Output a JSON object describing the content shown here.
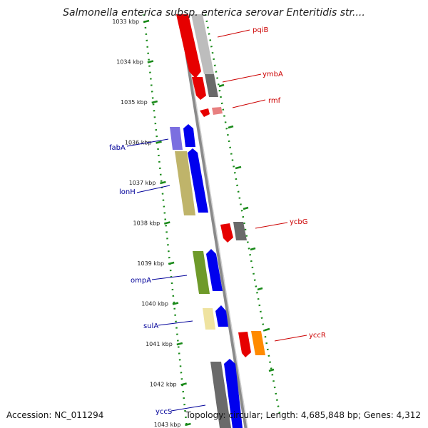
{
  "title": "Salmonella enterica subsp. enterica serovar Enteritidis str....",
  "footer": {
    "accession": "Accession: NC_011294",
    "topology": "Topology: circular; Length: 4,685,848 bp; Genes: 4,312"
  },
  "ticks": [
    {
      "label": "1033 kbp"
    },
    {
      "label": "1034 kbp"
    },
    {
      "label": "1035 kbp"
    },
    {
      "label": "1036 kbp"
    },
    {
      "label": "1037 kbp"
    },
    {
      "label": "1038 kbp"
    },
    {
      "label": "1039 kbp"
    },
    {
      "label": "1040 kbp"
    },
    {
      "label": "1041 kbp"
    },
    {
      "label": "1042 kbp"
    },
    {
      "label": "1043 kbp"
    }
  ],
  "genes": [
    {
      "name": "pqiB",
      "color": "#cc0000"
    },
    {
      "name": "ymbA",
      "color": "#cc0000"
    },
    {
      "name": "rmf",
      "color": "#cc0000"
    },
    {
      "name": "fabA",
      "color": "#000099"
    },
    {
      "name": "lonH",
      "color": "#000099"
    },
    {
      "name": "ycbG",
      "color": "#cc0000"
    },
    {
      "name": "ompA",
      "color": "#000099"
    },
    {
      "name": "sulA",
      "color": "#000099"
    },
    {
      "name": "yccR",
      "color": "#cc0000"
    },
    {
      "name": "yccS",
      "color": "#000099"
    }
  ],
  "colors": {
    "backbone": "#8c8c8c",
    "tick_marks": "#1a8a1a",
    "forward_gene": "#0000ee",
    "reverse_gene": "#ee0000",
    "gc_skew_dark": "#6a6a6a",
    "gc_skew_light": "#c8c8c8"
  }
}
